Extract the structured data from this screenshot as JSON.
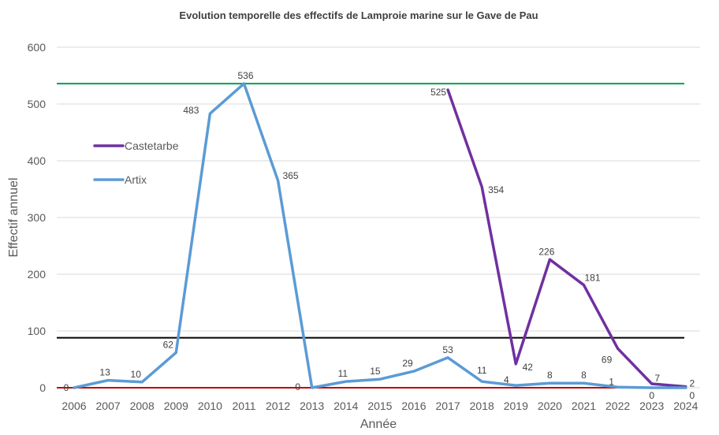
{
  "chart_data": {
    "type": "line",
    "title": "Evolution temporelle des effectifs de Lamproie marine sur le Gave de Pau",
    "xlabel": "Année",
    "ylabel": "Effectif annuel",
    "ylim": [
      0,
      600
    ],
    "yticks": [
      "0",
      "100",
      "200",
      "300",
      "400",
      "500",
      "600"
    ],
    "categories": [
      "2006",
      "2007",
      "2008",
      "2009",
      "2010",
      "2011",
      "2012",
      "2013",
      "2014",
      "2015",
      "2016",
      "2017",
      "2018",
      "2019",
      "2020",
      "2021",
      "2022",
      "2023",
      "2024"
    ],
    "grid": true,
    "legend_position": "left",
    "series": [
      {
        "name": "Castetarbe",
        "color": "#7030a0",
        "values": [
          null,
          null,
          null,
          null,
          null,
          null,
          null,
          null,
          null,
          null,
          null,
          525,
          354,
          42,
          226,
          181,
          69,
          7,
          2
        ],
        "labels": [
          null,
          null,
          null,
          null,
          null,
          null,
          null,
          null,
          null,
          null,
          null,
          "525",
          "354",
          "42",
          "226",
          "181",
          "69",
          "7",
          "2"
        ]
      },
      {
        "name": "Artix",
        "color": "#5b9bd5",
        "values": [
          0,
          13,
          10,
          62,
          483,
          536,
          365,
          0,
          11,
          15,
          29,
          53,
          11,
          4,
          8,
          8,
          1,
          0,
          0
        ],
        "labels": [
          "0",
          "13",
          "10",
          "62",
          "483",
          "536",
          "365",
          "0",
          "11",
          "15",
          "29",
          "53",
          "11",
          "4",
          "8",
          "8",
          "1",
          "0",
          "0"
        ]
      }
    ],
    "reference_lines": [
      {
        "y": 536,
        "color": "#00a050"
      },
      {
        "y": 88,
        "color": "#000000"
      },
      {
        "y": 0,
        "color": "#c00000"
      }
    ]
  }
}
